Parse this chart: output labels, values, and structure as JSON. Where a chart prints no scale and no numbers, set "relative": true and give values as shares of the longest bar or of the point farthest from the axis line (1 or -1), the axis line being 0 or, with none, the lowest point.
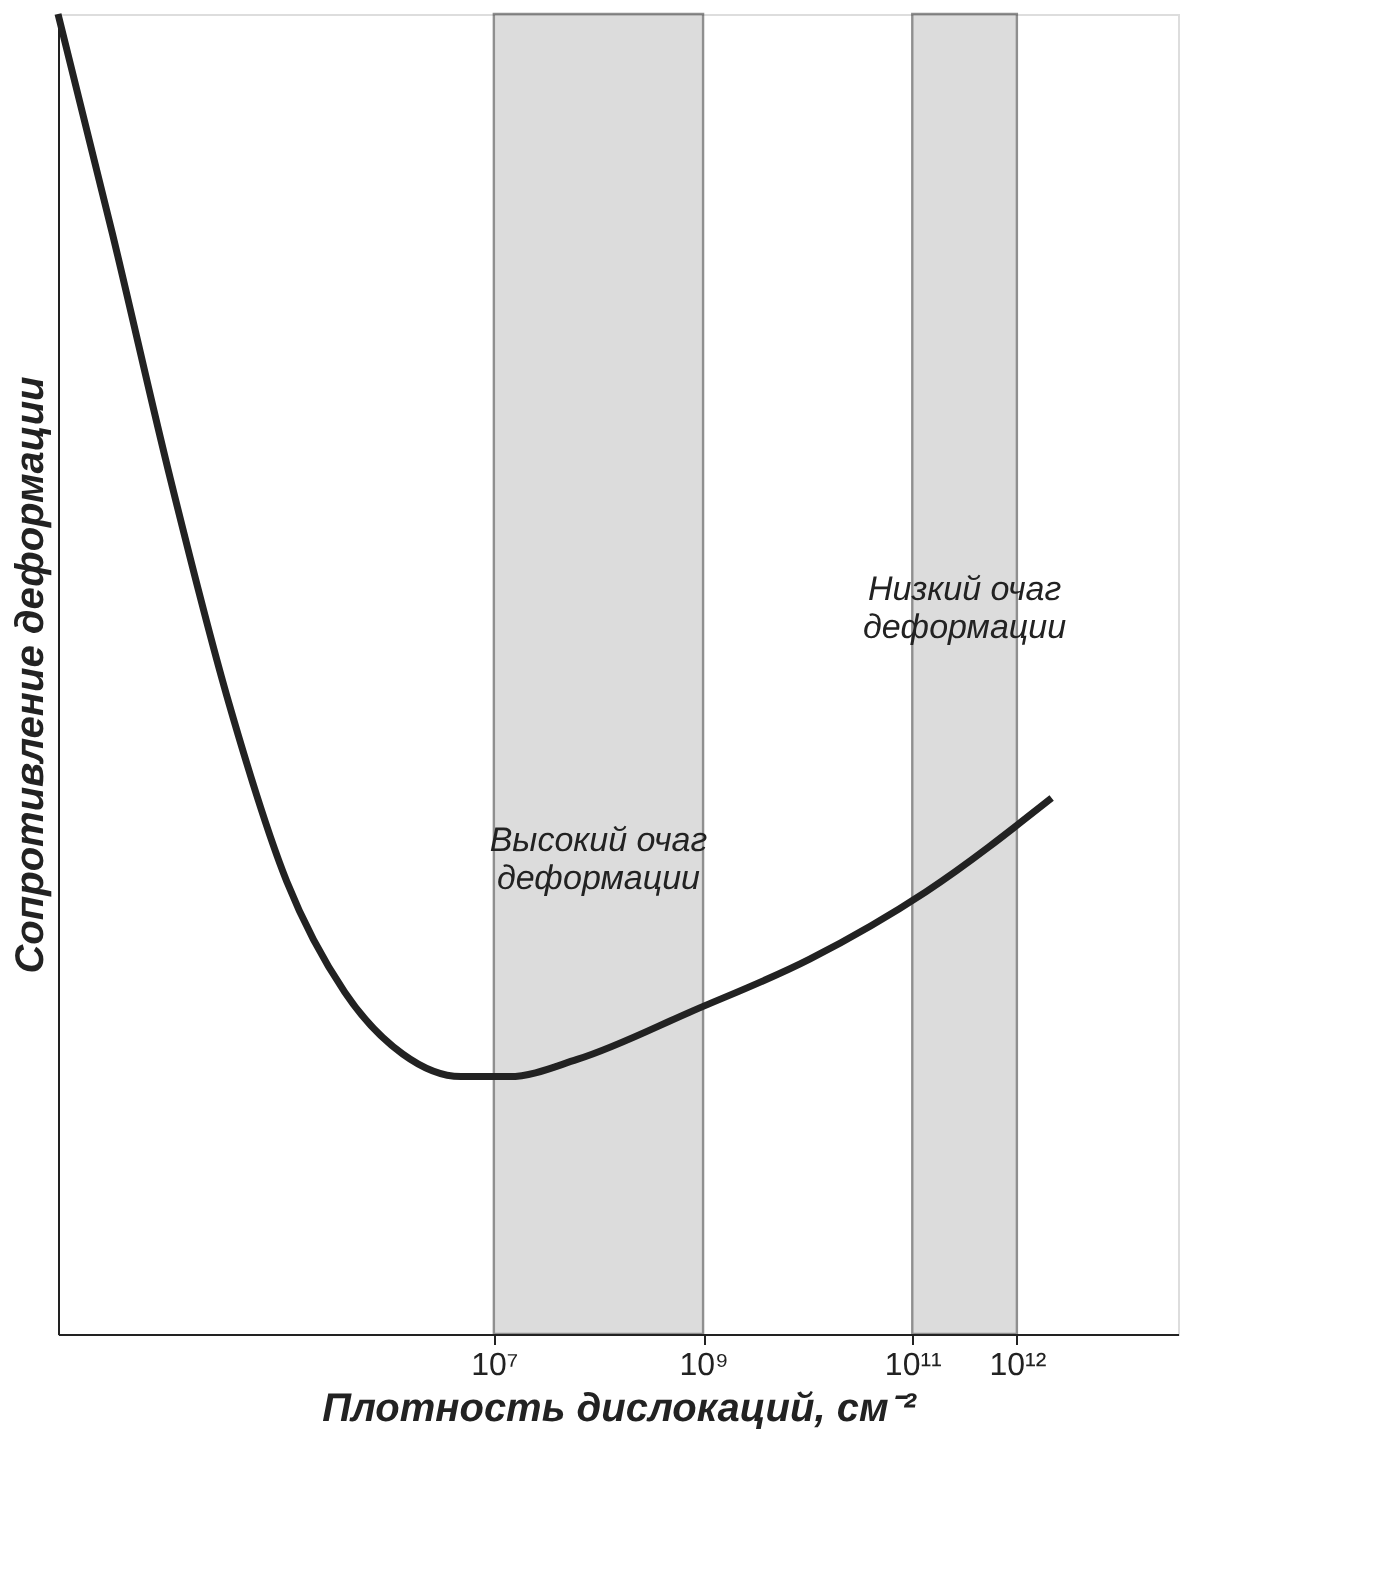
{
  "chart_data": {
    "type": "line",
    "relative": true,
    "log": "x",
    "xlabel": "Плотность дислокаций, см⁻²",
    "ylabel": "Сопротивление деформации",
    "xlim": [
      681,
      34700000000000.0
    ],
    "xticks": [
      {
        "value": 10000000.0,
        "label": "10⁷"
      },
      {
        "value": 1000000000.0,
        "label": "10⁹"
      },
      {
        "value": 100000000000.0,
        "label": "10¹¹"
      },
      {
        "value": 1000000000000.0,
        "label": "10¹²"
      }
    ],
    "x": [
      681,
      2250,
      8070,
      29040,
      104500,
      375000,
      1349000,
      4842000,
      14060000.0,
      62500000.0,
      807000000.0,
      10450000000.0,
      134900000000.0,
      2150000000000.0
    ],
    "series": [
      {
        "color": "#222222",
        "values": [
          1.0,
          0.834,
          0.648,
          0.479,
          0.343,
          0.259,
          0.212,
          0.195,
          0.195,
          0.208,
          0.245,
          0.284,
          0.335,
          0.406
        ]
      }
    ],
    "bands": [
      {
        "axis": "x",
        "from": 10000000.0,
        "to": 1000000000.0,
        "label": "Высокий очаг\nдеформации",
        "color": "#bbbbbb"
      },
      {
        "axis": "x",
        "from": 100000000000.0,
        "to": 1000000000000.0,
        "label": "Низкий очаг\nдеформации",
        "color": "#bbbbbb"
      }
    ],
    "tick_labels": "x",
    "grid": false,
    "marker": "none",
    "line_style": "solid"
  }
}
